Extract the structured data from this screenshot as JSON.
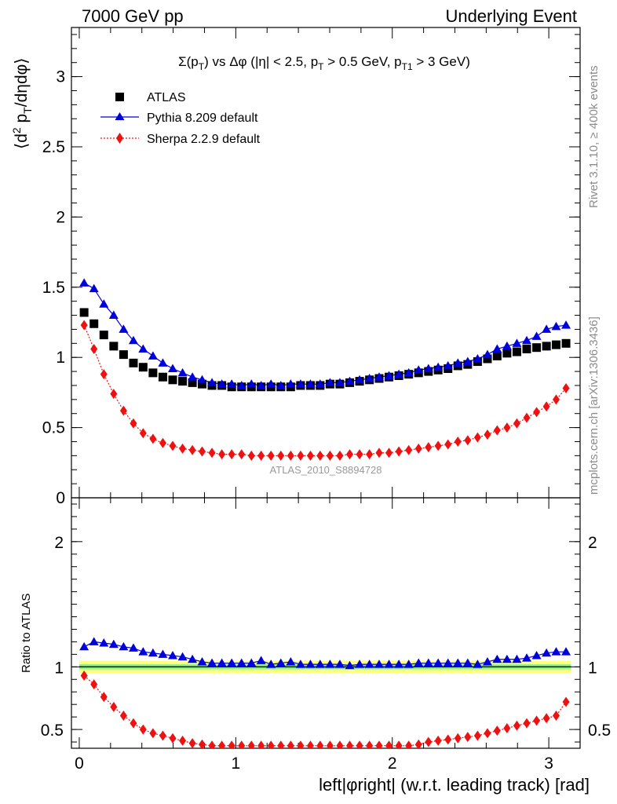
{
  "header": {
    "left": "7000 GeV pp",
    "right": "Underlying Event"
  },
  "side_text": {
    "rivet": "Rivet 3.1.10, ≥ 400k events",
    "mcplots": "mcplots.cern.ch [arXiv:1306.3436]"
  },
  "colors": {
    "atlas": "#000000",
    "pythia": "#0000dd",
    "sherpa": "#ee1111",
    "band_inner": "#8cf08c",
    "band_outer": "#ffff80"
  },
  "chart_data": [
    {
      "type": "scatter",
      "title": "Σ(pT) vs Δφ (|η| < 2.5, pT > 0.5 GeV, pT1 > 3 GeV)",
      "ylabel": "⟨d² pT/dηdφ⟩",
      "xlabel": "",
      "ylim": [
        0,
        3.35
      ],
      "xlim": [
        -0.05,
        3.2
      ],
      "yticks": [
        "0",
        "0.5",
        "1",
        "1.5",
        "2",
        "2.5",
        "3"
      ],
      "watermark": "ATLAS_2010_S8894728",
      "legend": [
        "ATLAS",
        "Pythia 8.209 default",
        "Sherpa 2.2.9 default"
      ],
      "legend_position": "top-left",
      "x": [
        0.031,
        0.094,
        0.157,
        0.22,
        0.283,
        0.346,
        0.408,
        0.471,
        0.534,
        0.597,
        0.66,
        0.723,
        0.785,
        0.848,
        0.911,
        0.974,
        1.037,
        1.1,
        1.162,
        1.225,
        1.288,
        1.351,
        1.414,
        1.477,
        1.539,
        1.602,
        1.665,
        1.728,
        1.791,
        1.854,
        1.916,
        1.979,
        2.042,
        2.105,
        2.168,
        2.231,
        2.293,
        2.356,
        2.419,
        2.482,
        2.545,
        2.608,
        2.67,
        2.733,
        2.796,
        2.859,
        2.922,
        2.985,
        3.047,
        3.11
      ],
      "series": [
        {
          "name": "ATLAS",
          "marker": "square",
          "values": [
            1.32,
            1.24,
            1.16,
            1.08,
            1.02,
            0.96,
            0.93,
            0.89,
            0.86,
            0.84,
            0.83,
            0.82,
            0.81,
            0.8,
            0.8,
            0.79,
            0.79,
            0.79,
            0.79,
            0.79,
            0.79,
            0.79,
            0.8,
            0.8,
            0.8,
            0.81,
            0.81,
            0.82,
            0.83,
            0.84,
            0.85,
            0.86,
            0.87,
            0.88,
            0.89,
            0.9,
            0.91,
            0.92,
            0.94,
            0.95,
            0.97,
            0.99,
            1.01,
            1.03,
            1.04,
            1.06,
            1.07,
            1.08,
            1.09,
            1.1
          ]
        },
        {
          "name": "Pythia 8.209 default",
          "marker": "triangle",
          "values": [
            1.53,
            1.49,
            1.38,
            1.3,
            1.2,
            1.12,
            1.06,
            1.01,
            0.96,
            0.92,
            0.89,
            0.86,
            0.84,
            0.82,
            0.81,
            0.81,
            0.8,
            0.81,
            0.8,
            0.81,
            0.8,
            0.81,
            0.81,
            0.81,
            0.81,
            0.82,
            0.82,
            0.83,
            0.84,
            0.85,
            0.86,
            0.87,
            0.88,
            0.89,
            0.91,
            0.92,
            0.93,
            0.94,
            0.96,
            0.97,
            0.99,
            1.02,
            1.06,
            1.08,
            1.1,
            1.12,
            1.15,
            1.2,
            1.22,
            1.23
          ]
        },
        {
          "name": "Sherpa 2.2.9 default",
          "marker": "diamond",
          "values": [
            1.23,
            1.06,
            0.88,
            0.74,
            0.62,
            0.53,
            0.46,
            0.42,
            0.39,
            0.37,
            0.35,
            0.34,
            0.33,
            0.32,
            0.31,
            0.31,
            0.31,
            0.3,
            0.3,
            0.3,
            0.3,
            0.3,
            0.3,
            0.3,
            0.3,
            0.3,
            0.3,
            0.31,
            0.31,
            0.31,
            0.32,
            0.32,
            0.33,
            0.34,
            0.35,
            0.36,
            0.37,
            0.38,
            0.4,
            0.41,
            0.43,
            0.45,
            0.48,
            0.5,
            0.53,
            0.57,
            0.61,
            0.65,
            0.7,
            0.78
          ]
        }
      ]
    },
    {
      "type": "scatter",
      "ylabel": "Ratio to ATLAS",
      "xlabel": "left|φright| (w.r.t. leading track) [rad]",
      "ylim": [
        0.35,
        2.35
      ],
      "xlim": [
        -0.05,
        3.2
      ],
      "xticks": [
        "0",
        "1",
        "2",
        "3"
      ],
      "yticks": [
        "0.5",
        "1",
        "2"
      ],
      "band_inner": [
        0.98,
        1.02
      ],
      "band_outer": [
        0.95,
        1.05
      ],
      "reference": 1.0,
      "series": [
        {
          "name": "Pythia 8.209 default",
          "values": [
            1.16,
            1.2,
            1.19,
            1.18,
            1.16,
            1.15,
            1.12,
            1.11,
            1.1,
            1.09,
            1.08,
            1.06,
            1.04,
            1.03,
            1.03,
            1.03,
            1.03,
            1.03,
            1.05,
            1.02,
            1.03,
            1.04,
            1.02,
            1.02,
            1.02,
            1.02,
            1.02,
            1.01,
            1.02,
            1.02,
            1.02,
            1.02,
            1.02,
            1.02,
            1.03,
            1.03,
            1.03,
            1.03,
            1.03,
            1.03,
            1.02,
            1.04,
            1.06,
            1.06,
            1.06,
            1.07,
            1.09,
            1.11,
            1.12,
            1.12
          ]
        },
        {
          "name": "Sherpa 2.2.9 default",
          "values": [
            0.93,
            0.86,
            0.76,
            0.68,
            0.61,
            0.55,
            0.5,
            0.47,
            0.45,
            0.43,
            0.41,
            0.39,
            0.38,
            0.37,
            0.37,
            0.37,
            0.37,
            0.37,
            0.37,
            0.37,
            0.37,
            0.37,
            0.37,
            0.37,
            0.37,
            0.37,
            0.37,
            0.37,
            0.37,
            0.37,
            0.37,
            0.37,
            0.37,
            0.37,
            0.38,
            0.4,
            0.41,
            0.42,
            0.43,
            0.44,
            0.45,
            0.47,
            0.49,
            0.51,
            0.53,
            0.55,
            0.57,
            0.59,
            0.61,
            0.72
          ]
        }
      ]
    }
  ]
}
